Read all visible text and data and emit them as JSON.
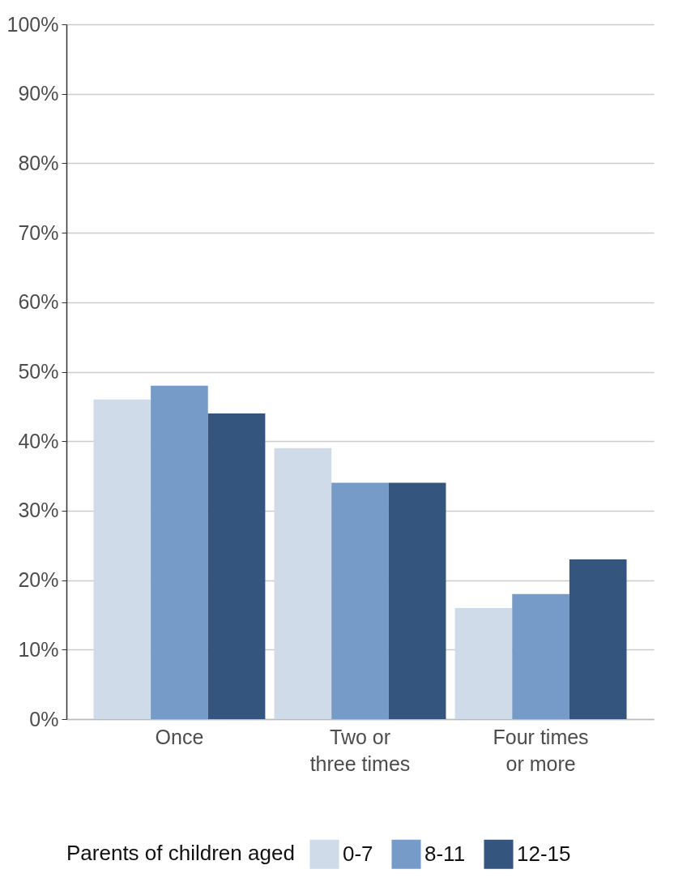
{
  "chart_data": {
    "type": "bar",
    "categories": [
      "Once",
      "Two or\nthree times",
      "Four times\nor more"
    ],
    "series": [
      {
        "name": "0-7",
        "color": "#d0dbea",
        "values": [
          46,
          39,
          16
        ]
      },
      {
        "name": "8-11",
        "color": "#779bc8",
        "values": [
          48,
          34,
          18
        ]
      },
      {
        "name": "12-15",
        "color": "#34557d",
        "values": [
          44,
          34,
          23
        ]
      }
    ],
    "legend_title": "Parents of children aged",
    "legend": "bottom",
    "grid": "y",
    "ylim": [
      0,
      100
    ],
    "yticks": [
      {
        "value": 0,
        "label": "0%"
      },
      {
        "value": 10,
        "label": "10%"
      },
      {
        "value": 20,
        "label": "20%"
      },
      {
        "value": 30,
        "label": "30%"
      },
      {
        "value": 40,
        "label": "40%"
      },
      {
        "value": 50,
        "label": "50%"
      },
      {
        "value": 60,
        "label": "60%"
      },
      {
        "value": 70,
        "label": "70%"
      },
      {
        "value": 80,
        "label": "80%"
      },
      {
        "value": 90,
        "label": "90%"
      },
      {
        "value": 100,
        "label": "100%"
      }
    ]
  }
}
